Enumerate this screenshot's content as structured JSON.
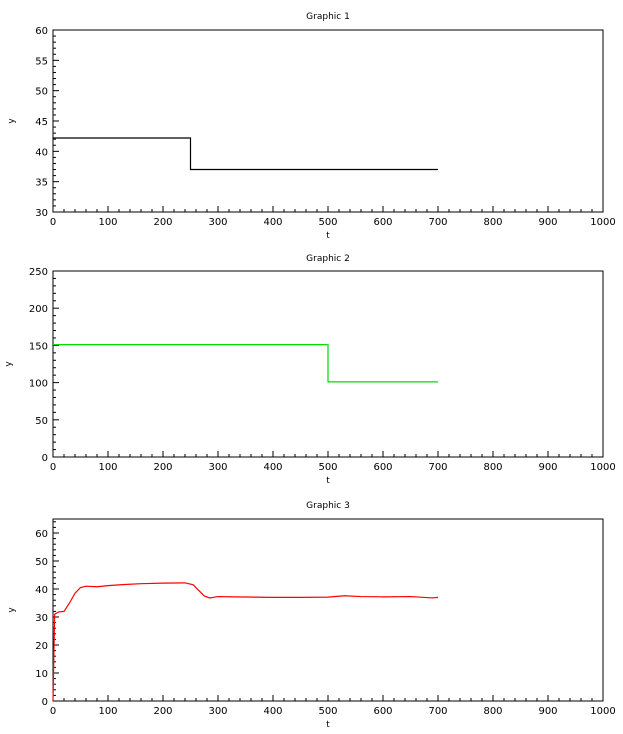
{
  "chart_data": [
    {
      "type": "line",
      "title": "Graphic 1",
      "xlabel": "t",
      "ylabel": "y",
      "xlim": [
        0,
        1000
      ],
      "ylim": [
        30,
        60
      ],
      "xticks": [
        0,
        100,
        200,
        300,
        400,
        500,
        600,
        700,
        800,
        900,
        1000
      ],
      "yticks": [
        30,
        35,
        40,
        45,
        50,
        55,
        60
      ],
      "grid": false,
      "series": [
        {
          "color": "#000000",
          "points": [
            [
              0,
              42.2
            ],
            [
              250,
              42.2
            ],
            [
              250,
              37
            ],
            [
              700,
              37
            ]
          ]
        }
      ]
    },
    {
      "type": "line",
      "title": "Graphic 2",
      "xlabel": "t",
      "ylabel": "y",
      "xlim": [
        0,
        1000
      ],
      "ylim": [
        0,
        250
      ],
      "xticks": [
        0,
        100,
        200,
        300,
        400,
        500,
        600,
        700,
        800,
        900,
        1000
      ],
      "yticks": [
        0,
        50,
        100,
        150,
        200,
        250
      ],
      "grid": false,
      "series": [
        {
          "color": "#00dd00",
          "points": [
            [
              0,
              151
            ],
            [
              500,
              151
            ],
            [
              500,
              101
            ],
            [
              700,
              101
            ]
          ]
        }
      ]
    },
    {
      "type": "line",
      "title": "Graphic 3",
      "xlabel": "t",
      "ylabel": "y",
      "xlim": [
        0,
        1000
      ],
      "ylim": [
        0,
        65
      ],
      "xticks": [
        0,
        100,
        200,
        300,
        400,
        500,
        600,
        700,
        800,
        900,
        1000
      ],
      "yticks": [
        0,
        10,
        20,
        30,
        40,
        50,
        60
      ],
      "grid": false,
      "series": [
        {
          "color": "#ff0000",
          "points": [
            [
              0,
              0
            ],
            [
              3,
              31
            ],
            [
              10,
              31.8
            ],
            [
              20,
              32
            ],
            [
              30,
              35
            ],
            [
              40,
              38.5
            ],
            [
              50,
              40.5
            ],
            [
              60,
              41
            ],
            [
              80,
              40.8
            ],
            [
              100,
              41.2
            ],
            [
              130,
              41.6
            ],
            [
              160,
              41.9
            ],
            [
              200,
              42.1
            ],
            [
              240,
              42.2
            ],
            [
              255,
              41.5
            ],
            [
              265,
              39.5
            ],
            [
              275,
              37.5
            ],
            [
              285,
              36.8
            ],
            [
              300,
              37.3
            ],
            [
              330,
              37.2
            ],
            [
              400,
              37
            ],
            [
              450,
              37
            ],
            [
              500,
              37.1
            ],
            [
              530,
              37.6
            ],
            [
              560,
              37.3
            ],
            [
              600,
              37.2
            ],
            [
              650,
              37.3
            ],
            [
              690,
              36.8
            ],
            [
              700,
              37
            ]
          ]
        }
      ]
    }
  ]
}
